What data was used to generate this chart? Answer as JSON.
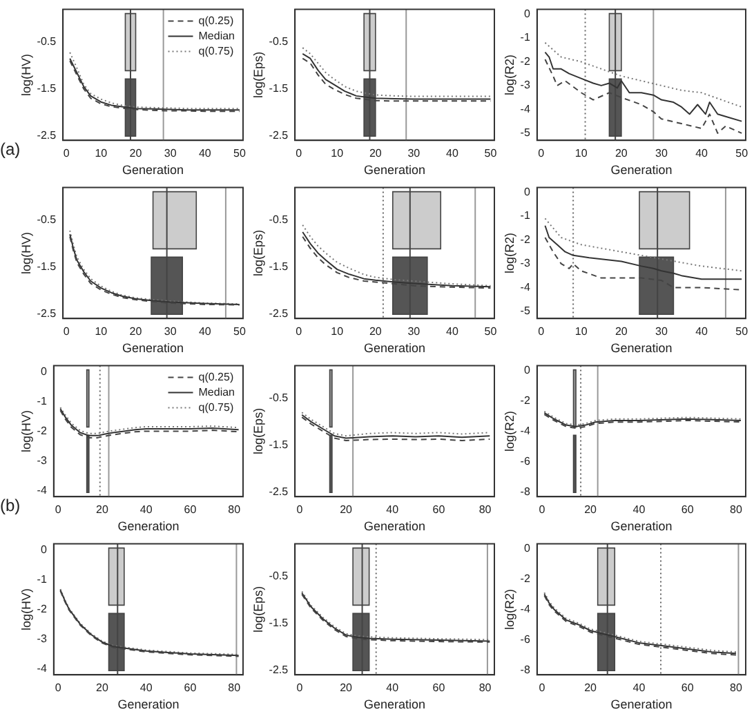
{
  "chart_data": [
    {
      "type": "line",
      "xlabel": "Generation",
      "ylabel": "log(HV)",
      "annotations": [
        "(a)"
      ],
      "legend": "top right",
      "xlim": [
        -1,
        51
      ],
      "xticks": [
        0,
        10,
        20,
        30,
        40,
        50
      ],
      "ylim": [
        -2.6,
        0.2
      ],
      "yticks": [
        -0.5,
        -1.5,
        -2.5
      ],
      "x": [
        1,
        3,
        5,
        7,
        10,
        13,
        16,
        20,
        25,
        30,
        35,
        40,
        45,
        50
      ],
      "bands": [
        {
          "axis": "x",
          "from": 17,
          "to": 20,
          "color": "#cccccc"
        },
        {
          "axis": "x",
          "from": 17,
          "to": 20,
          "color": "#555555"
        }
      ],
      "ref_lines": [
        {
          "axis": "x",
          "value": 18.5,
          "color": "#444444",
          "line_style": "solid"
        },
        {
          "axis": "x",
          "value": 28,
          "color": "#999999",
          "line_style": "solid"
        }
      ],
      "series": [
        {
          "name": "q(0.25)",
          "color": "#444444",
          "line_style": "dashed",
          "values": [
            -0.9,
            -1.2,
            -1.5,
            -1.7,
            -1.82,
            -1.88,
            -1.91,
            -1.94,
            -1.96,
            -1.97,
            -1.97,
            -1.98,
            -1.98,
            -1.98
          ]
        },
        {
          "name": "Median",
          "color": "#333333",
          "line_style": "solid",
          "values": [
            -0.85,
            -1.15,
            -1.45,
            -1.65,
            -1.78,
            -1.85,
            -1.88,
            -1.92,
            -1.93,
            -1.94,
            -1.95,
            -1.95,
            -1.95,
            -1.95
          ]
        },
        {
          "name": "q(0.75)",
          "color": "#777777",
          "line_style": "dotted",
          "values": [
            -0.72,
            -1.05,
            -1.4,
            -1.6,
            -1.72,
            -1.8,
            -1.85,
            -1.89,
            -1.9,
            -1.91,
            -1.92,
            -1.92,
            -1.92,
            -1.92
          ]
        }
      ]
    },
    {
      "type": "line",
      "xlabel": "Generation",
      "ylabel": "log(Eps)",
      "xlim": [
        -1,
        51
      ],
      "xticks": [
        0,
        10,
        20,
        30,
        40,
        50
      ],
      "ylim": [
        -2.6,
        0.2
      ],
      "yticks": [
        -0.5,
        -1.5,
        -2.5
      ],
      "x": [
        1,
        3,
        5,
        7,
        9,
        12,
        15,
        18,
        20,
        25,
        30,
        40,
        50
      ],
      "bands": [
        {
          "axis": "x",
          "from": 17,
          "to": 20,
          "color": "#cccccc"
        },
        {
          "axis": "x",
          "from": 17,
          "to": 20,
          "color": "#555555"
        }
      ],
      "ref_lines": [
        {
          "axis": "x",
          "value": 18.5,
          "color": "#444444",
          "line_style": "solid"
        },
        {
          "axis": "x",
          "value": 28,
          "color": "#999999",
          "line_style": "solid"
        }
      ],
      "series": [
        {
          "color": "#444444",
          "line_style": "dashed",
          "values": [
            -0.85,
            -0.95,
            -1.2,
            -1.4,
            -1.5,
            -1.62,
            -1.7,
            -1.73,
            -1.75,
            -1.76,
            -1.76,
            -1.76,
            -1.76
          ]
        },
        {
          "color": "#333333",
          "line_style": "solid",
          "values": [
            -0.75,
            -0.85,
            -1.1,
            -1.3,
            -1.4,
            -1.55,
            -1.65,
            -1.68,
            -1.7,
            -1.71,
            -1.72,
            -1.72,
            -1.72
          ]
        },
        {
          "color": "#777777",
          "line_style": "dotted",
          "values": [
            -0.62,
            -0.75,
            -0.95,
            -1.15,
            -1.28,
            -1.45,
            -1.55,
            -1.6,
            -1.63,
            -1.65,
            -1.66,
            -1.66,
            -1.66
          ]
        }
      ]
    },
    {
      "type": "line",
      "xlabel": "Generation",
      "ylabel": "log(R2)",
      "xlim": [
        -1,
        51
      ],
      "xticks": [
        0,
        10,
        20,
        30,
        40,
        50
      ],
      "ylim": [
        -5.3,
        0.2
      ],
      "yticks": [
        0,
        -1,
        -2,
        -3,
        -4,
        -5
      ],
      "bands": [
        {
          "axis": "x",
          "from": 17,
          "to": 20,
          "color": "#cccccc"
        },
        {
          "axis": "x",
          "from": 17,
          "to": 20,
          "color": "#555555"
        }
      ],
      "ref_lines": [
        {
          "axis": "x",
          "value": 11,
          "color": "#666666",
          "line_style": "dotted"
        },
        {
          "axis": "x",
          "value": 18.5,
          "color": "#444444",
          "line_style": "solid"
        },
        {
          "axis": "x",
          "value": 28,
          "color": "#999999",
          "line_style": "solid"
        }
      ],
      "series": [
        {
          "color": "#444444",
          "line_style": "dashed",
          "x": [
            1,
            3,
            4,
            6,
            10,
            13,
            17,
            20,
            25,
            28,
            30,
            35,
            40,
            42,
            44,
            46,
            50
          ],
          "values": [
            -1.9,
            -2.6,
            -3.0,
            -2.8,
            -3.3,
            -3.6,
            -3.3,
            -3.5,
            -3.8,
            -4.1,
            -4.4,
            -4.6,
            -4.8,
            -4.2,
            -5.0,
            -4.7,
            -5.0
          ]
        },
        {
          "color": "#333333",
          "line_style": "solid",
          "x": [
            1,
            2,
            3,
            5,
            7,
            10,
            13,
            15,
            17,
            19,
            20,
            22,
            25,
            28,
            30,
            33,
            35,
            37,
            39,
            41,
            42,
            44,
            46,
            50
          ],
          "values": [
            -1.6,
            -1.8,
            -2.3,
            -2.3,
            -2.5,
            -2.7,
            -2.9,
            -3.0,
            -2.9,
            -3.1,
            -2.8,
            -3.3,
            -3.3,
            -3.4,
            -3.6,
            -3.7,
            -3.9,
            -4.2,
            -3.8,
            -4.2,
            -3.7,
            -4.2,
            -4.3,
            -4.5
          ]
        },
        {
          "color": "#777777",
          "line_style": "dotted",
          "x": [
            1,
            5,
            10,
            15,
            20,
            25,
            30,
            35,
            40,
            45,
            50
          ],
          "values": [
            -1.2,
            -1.8,
            -2.0,
            -2.3,
            -2.6,
            -2.8,
            -3.0,
            -3.2,
            -3.3,
            -3.6,
            -3.9
          ]
        }
      ]
    },
    {
      "type": "line",
      "xlabel": "Generation",
      "ylabel": "log(HV)",
      "xlim": [
        -1,
        51
      ],
      "xticks": [
        0,
        10,
        20,
        30,
        40,
        50
      ],
      "ylim": [
        -2.6,
        0.2
      ],
      "yticks": [
        -0.5,
        -1.5,
        -2.5
      ],
      "x": [
        1,
        2,
        3,
        5,
        7,
        10,
        13,
        16,
        20,
        25,
        30,
        40,
        50
      ],
      "bands": [
        {
          "axis": "x",
          "from": 25,
          "to": 37.5,
          "color": "#cccccc"
        },
        {
          "axis": "x",
          "from": 24.5,
          "to": 33.5,
          "color": "#555555"
        }
      ],
      "ref_lines": [
        {
          "axis": "x",
          "value": 29,
          "color": "#444444",
          "line_style": "solid"
        },
        {
          "axis": "x",
          "value": 46,
          "color": "#999999",
          "line_style": "solid"
        }
      ],
      "series": [
        {
          "color": "#444444",
          "line_style": "dashed",
          "values": [
            -0.85,
            -1.15,
            -1.4,
            -1.65,
            -1.85,
            -1.99,
            -2.08,
            -2.15,
            -2.2,
            -2.24,
            -2.27,
            -2.3,
            -2.31
          ]
        },
        {
          "color": "#333333",
          "line_style": "solid",
          "values": [
            -0.8,
            -1.1,
            -1.35,
            -1.6,
            -1.8,
            -1.95,
            -2.05,
            -2.12,
            -2.18,
            -2.22,
            -2.25,
            -2.28,
            -2.3
          ]
        },
        {
          "color": "#777777",
          "line_style": "dotted",
          "values": [
            -0.72,
            -1.02,
            -1.28,
            -1.55,
            -1.75,
            -1.91,
            -2.02,
            -2.1,
            -2.16,
            -2.2,
            -2.23,
            -2.27,
            -2.29
          ]
        }
      ]
    },
    {
      "type": "line",
      "xlabel": "Generation",
      "ylabel": "log(Eps)",
      "xlim": [
        -1,
        51
      ],
      "xticks": [
        0,
        10,
        20,
        30,
        40,
        50
      ],
      "ylim": [
        -2.6,
        0.2
      ],
      "yticks": [
        -0.5,
        -1.5,
        -2.5
      ],
      "x": [
        1,
        3,
        5,
        7,
        10,
        13,
        17,
        20,
        25,
        30,
        40,
        50
      ],
      "bands": [
        {
          "axis": "x",
          "from": 24.5,
          "to": 37,
          "color": "#cccccc"
        },
        {
          "axis": "x",
          "from": 24.5,
          "to": 33.5,
          "color": "#555555"
        }
      ],
      "ref_lines": [
        {
          "axis": "x",
          "value": 22,
          "color": "#666666",
          "line_style": "dotted"
        },
        {
          "axis": "x",
          "value": 29,
          "color": "#444444",
          "line_style": "solid"
        },
        {
          "axis": "x",
          "value": 46,
          "color": "#999999",
          "line_style": "solid"
        }
      ],
      "series": [
        {
          "color": "#444444",
          "line_style": "dashed",
          "values": [
            -0.85,
            -1.1,
            -1.3,
            -1.45,
            -1.62,
            -1.72,
            -1.8,
            -1.82,
            -1.86,
            -1.9,
            -1.93,
            -1.95
          ]
        },
        {
          "color": "#333333",
          "line_style": "solid",
          "values": [
            -0.75,
            -1.0,
            -1.2,
            -1.35,
            -1.55,
            -1.65,
            -1.75,
            -1.78,
            -1.82,
            -1.85,
            -1.9,
            -1.92
          ]
        },
        {
          "color": "#777777",
          "line_style": "dotted",
          "values": [
            -0.6,
            -0.85,
            -1.05,
            -1.2,
            -1.4,
            -1.52,
            -1.66,
            -1.72,
            -1.77,
            -1.8,
            -1.86,
            -1.9
          ]
        }
      ]
    },
    {
      "type": "line",
      "xlabel": "Generation",
      "ylabel": "log(R2)",
      "xlim": [
        -1,
        51
      ],
      "xticks": [
        0,
        10,
        20,
        30,
        40,
        50
      ],
      "ylim": [
        -5.3,
        0.2
      ],
      "yticks": [
        0,
        -1,
        -2,
        -3,
        -4,
        -5
      ],
      "bands": [
        {
          "axis": "x",
          "from": 24.5,
          "to": 37,
          "color": "#cccccc"
        },
        {
          "axis": "x",
          "from": 24.5,
          "to": 33,
          "color": "#555555"
        }
      ],
      "ref_lines": [
        {
          "axis": "x",
          "value": 8,
          "color": "#666666",
          "line_style": "dotted"
        },
        {
          "axis": "x",
          "value": 29,
          "color": "#444444",
          "line_style": "solid"
        },
        {
          "axis": "x",
          "value": 46,
          "color": "#999999",
          "line_style": "solid"
        }
      ],
      "series": [
        {
          "color": "#444444",
          "line_style": "dashed",
          "x": [
            1,
            3,
            5,
            7,
            8,
            10,
            15,
            25,
            30,
            33,
            40,
            50
          ],
          "values": [
            -1.9,
            -2.5,
            -3.0,
            -3.2,
            -3.0,
            -3.3,
            -3.6,
            -3.6,
            -3.7,
            -4.0,
            -4.0,
            -4.1
          ]
        },
        {
          "color": "#333333",
          "line_style": "solid",
          "x": [
            1,
            2,
            4,
            6,
            8,
            12,
            20,
            25,
            28,
            30,
            33,
            35,
            40,
            50
          ],
          "values": [
            -1.4,
            -1.9,
            -2.2,
            -2.5,
            -2.65,
            -2.75,
            -2.9,
            -3.1,
            -3.2,
            -3.3,
            -3.4,
            -3.5,
            -3.65,
            -3.65
          ]
        },
        {
          "color": "#777777",
          "line_style": "dotted",
          "x": [
            1,
            5,
            10,
            20,
            30,
            40,
            50
          ],
          "values": [
            -1.1,
            -1.9,
            -2.2,
            -2.5,
            -2.8,
            -3.1,
            -3.3
          ]
        }
      ]
    },
    {
      "type": "line",
      "xlabel": "Generation",
      "ylabel": "log(HV)",
      "annotations": [
        "(b)"
      ],
      "legend": "top right",
      "xlim": [
        -2,
        84
      ],
      "xticks": [
        0,
        20,
        40,
        60,
        80
      ],
      "ylim": [
        -4.2,
        0.2
      ],
      "yticks": [
        0,
        -1,
        -2,
        -3,
        -4
      ],
      "x": [
        1,
        3,
        6,
        10,
        14,
        18,
        21,
        25,
        30,
        35,
        40,
        50,
        60,
        70,
        82
      ],
      "bands": [
        {
          "axis": "x",
          "from": 13,
          "to": 14,
          "color": "#999999"
        },
        {
          "axis": "x",
          "from": 13,
          "to": 14,
          "color": "#555555"
        }
      ],
      "ref_lines": [
        {
          "axis": "x",
          "value": 19,
          "color": "#666666",
          "line_style": "dotted"
        },
        {
          "axis": "x",
          "value": 23,
          "color": "#999999",
          "line_style": "solid"
        }
      ],
      "series": [
        {
          "name": "q(0.25)",
          "color": "#444444",
          "line_style": "dashed",
          "values": [
            -1.3,
            -1.57,
            -1.87,
            -2.12,
            -2.22,
            -2.22,
            -2.17,
            -2.12,
            -2.07,
            -2.02,
            -2.0,
            -2.0,
            -2.0,
            -1.97,
            -2.02
          ]
        },
        {
          "name": "Median",
          "color": "#333333",
          "line_style": "solid",
          "values": [
            -1.25,
            -1.5,
            -1.8,
            -2.05,
            -2.15,
            -2.15,
            -2.1,
            -2.05,
            -2.0,
            -1.95,
            -1.92,
            -1.92,
            -1.92,
            -1.9,
            -1.95
          ]
        },
        {
          "name": "q(0.75)",
          "color": "#777777",
          "line_style": "dotted",
          "values": [
            -1.2,
            -1.43,
            -1.73,
            -1.98,
            -2.08,
            -2.08,
            -2.03,
            -1.98,
            -1.93,
            -1.88,
            -1.85,
            -1.85,
            -1.85,
            -1.83,
            -1.88
          ]
        }
      ]
    },
    {
      "type": "line",
      "xlabel": "Generation",
      "ylabel": "log(Eps)",
      "xlim": [
        -2,
        84
      ],
      "xticks": [
        0,
        20,
        40,
        60,
        80
      ],
      "ylim": [
        -2.6,
        0.2
      ],
      "yticks": [
        -0.5,
        -1.5,
        -2.5
      ],
      "x": [
        1,
        5,
        10,
        15,
        20,
        30,
        40,
        50,
        60,
        70,
        82
      ],
      "bands": [
        {
          "axis": "x",
          "from": 13,
          "to": 14,
          "color": "#999999"
        },
        {
          "axis": "x",
          "from": 13,
          "to": 14,
          "color": "#555555"
        }
      ],
      "ref_lines": [
        {
          "axis": "x",
          "value": 23,
          "color": "#999999",
          "line_style": "solid"
        }
      ],
      "series": [
        {
          "color": "#444444",
          "line_style": "dashed",
          "values": [
            -0.9,
            -1.05,
            -1.2,
            -1.35,
            -1.4,
            -1.38,
            -1.37,
            -1.38,
            -1.37,
            -1.4,
            -1.37
          ]
        },
        {
          "color": "#333333",
          "line_style": "solid",
          "values": [
            -0.85,
            -1.0,
            -1.15,
            -1.3,
            -1.35,
            -1.32,
            -1.3,
            -1.32,
            -1.3,
            -1.33,
            -1.3
          ]
        },
        {
          "color": "#777777",
          "line_style": "dotted",
          "values": [
            -0.8,
            -0.95,
            -1.1,
            -1.25,
            -1.3,
            -1.25,
            -1.23,
            -1.25,
            -1.23,
            -1.26,
            -1.23
          ]
        }
      ]
    },
    {
      "type": "line",
      "xlabel": "Generation",
      "ylabel": "log(R2)",
      "xlim": [
        -2,
        84
      ],
      "xticks": [
        0,
        20,
        40,
        60,
        80
      ],
      "ylim": [
        -8.3,
        0.3
      ],
      "yticks": [
        0,
        -2,
        -4,
        -6,
        -8
      ],
      "x": [
        1,
        5,
        10,
        14,
        18,
        22,
        30,
        40,
        60,
        82
      ],
      "bands": [
        {
          "axis": "x",
          "from": 13,
          "to": 14,
          "color": "#999999"
        },
        {
          "axis": "x",
          "from": 13,
          "to": 14,
          "color": "#555555"
        }
      ],
      "ref_lines": [
        {
          "axis": "x",
          "value": 16,
          "color": "#666666",
          "line_style": "dotted"
        },
        {
          "axis": "x",
          "value": 23,
          "color": "#999999",
          "line_style": "solid"
        }
      ],
      "series": [
        {
          "color": "#444444",
          "line_style": "dashed",
          "values": [
            -2.9,
            -3.3,
            -3.7,
            -3.8,
            -3.7,
            -3.5,
            -3.4,
            -3.4,
            -3.3,
            -3.4
          ]
        },
        {
          "color": "#333333",
          "line_style": "solid",
          "values": [
            -2.8,
            -3.2,
            -3.6,
            -3.7,
            -3.6,
            -3.4,
            -3.3,
            -3.3,
            -3.2,
            -3.3
          ]
        },
        {
          "color": "#777777",
          "line_style": "dotted",
          "values": [
            -2.7,
            -3.1,
            -3.5,
            -3.6,
            -3.5,
            -3.3,
            -3.2,
            -3.2,
            -3.1,
            -3.2
          ]
        }
      ]
    },
    {
      "type": "line",
      "xlabel": "Generation",
      "ylabel": "log(HV)",
      "xlim": [
        -2,
        84
      ],
      "xticks": [
        0,
        20,
        40,
        60,
        80
      ],
      "ylim": [
        -4.2,
        0.2
      ],
      "yticks": [
        0,
        -1,
        -2,
        -3,
        -4
      ],
      "x": [
        1,
        3,
        5,
        10,
        15,
        20,
        25,
        30,
        40,
        50,
        60,
        70,
        82
      ],
      "bands": [
        {
          "axis": "x",
          "from": 23,
          "to": 30,
          "color": "#cccccc"
        },
        {
          "axis": "x",
          "from": 23,
          "to": 30,
          "color": "#555555"
        }
      ],
      "ref_lines": [
        {
          "axis": "x",
          "value": 27,
          "color": "#444444",
          "line_style": "solid"
        },
        {
          "axis": "x",
          "value": 81,
          "color": "#999999",
          "line_style": "solid"
        }
      ],
      "series": [
        {
          "color": "#444444",
          "line_style": "dashed",
          "values": [
            -1.38,
            -1.73,
            -2.03,
            -2.53,
            -2.88,
            -3.13,
            -3.28,
            -3.33,
            -3.43,
            -3.48,
            -3.53,
            -3.55,
            -3.58
          ]
        },
        {
          "color": "#333333",
          "line_style": "solid",
          "values": [
            -1.35,
            -1.7,
            -2.0,
            -2.5,
            -2.85,
            -3.1,
            -3.25,
            -3.3,
            -3.4,
            -3.45,
            -3.5,
            -3.52,
            -3.55
          ]
        },
        {
          "color": "#777777",
          "line_style": "dotted",
          "values": [
            -1.32,
            -1.67,
            -1.97,
            -2.47,
            -2.82,
            -3.07,
            -3.22,
            -3.27,
            -3.37,
            -3.42,
            -3.47,
            -3.49,
            -3.52
          ]
        }
      ]
    },
    {
      "type": "line",
      "xlabel": "Generation",
      "ylabel": "log(Eps)",
      "xlim": [
        -2,
        84
      ],
      "xticks": [
        0,
        20,
        40,
        60,
        80
      ],
      "ylim": [
        -2.6,
        0.2
      ],
      "yticks": [
        -0.5,
        -1.5,
        -2.5
      ],
      "x": [
        1,
        5,
        10,
        15,
        20,
        25,
        30,
        40,
        60,
        82
      ],
      "bands": [
        {
          "axis": "x",
          "from": 23,
          "to": 30,
          "color": "#cccccc"
        },
        {
          "axis": "x",
          "from": 23,
          "to": 30,
          "color": "#555555"
        }
      ],
      "ref_lines": [
        {
          "axis": "x",
          "value": 27,
          "color": "#444444",
          "line_style": "solid"
        },
        {
          "axis": "x",
          "value": 33,
          "color": "#666666",
          "line_style": "dotted"
        },
        {
          "axis": "x",
          "value": 81,
          "color": "#999999",
          "line_style": "solid"
        }
      ],
      "series": [
        {
          "color": "#444444",
          "line_style": "dashed",
          "values": [
            -0.88,
            -1.18,
            -1.43,
            -1.63,
            -1.78,
            -1.83,
            -1.85,
            -1.87,
            -1.89,
            -1.9
          ]
        },
        {
          "color": "#333333",
          "line_style": "solid",
          "values": [
            -0.85,
            -1.15,
            -1.4,
            -1.6,
            -1.75,
            -1.8,
            -1.82,
            -1.84,
            -1.86,
            -1.88
          ]
        },
        {
          "color": "#777777",
          "line_style": "dotted",
          "values": [
            -0.82,
            -1.12,
            -1.37,
            -1.57,
            -1.72,
            -1.77,
            -1.79,
            -1.81,
            -1.83,
            -1.85
          ]
        }
      ]
    },
    {
      "type": "line",
      "xlabel": "Generation",
      "ylabel": "log(R2)",
      "xlim": [
        -2,
        84
      ],
      "xticks": [
        0,
        20,
        40,
        60,
        80
      ],
      "ylim": [
        -8.3,
        0.3
      ],
      "yticks": [
        0,
        -2,
        -4,
        -6,
        -8
      ],
      "x": [
        1,
        3,
        5,
        10,
        15,
        20,
        25,
        30,
        40,
        50,
        60,
        70,
        80
      ],
      "bands": [
        {
          "axis": "x",
          "from": 23,
          "to": 30,
          "color": "#cccccc"
        },
        {
          "axis": "x",
          "from": 23,
          "to": 30,
          "color": "#555555"
        }
      ],
      "ref_lines": [
        {
          "axis": "x",
          "value": 27,
          "color": "#444444",
          "line_style": "solid"
        },
        {
          "axis": "x",
          "value": 49,
          "color": "#666666",
          "line_style": "dotted"
        },
        {
          "axis": "x",
          "value": 81,
          "color": "#999999",
          "line_style": "solid"
        }
      ],
      "series": [
        {
          "color": "#444444",
          "line_style": "dashed",
          "values": [
            -3.1,
            -3.7,
            -4.1,
            -4.8,
            -5.1,
            -5.5,
            -5.7,
            -5.9,
            -6.3,
            -6.5,
            -6.7,
            -6.9,
            -7.0
          ]
        },
        {
          "color": "#333333",
          "line_style": "solid",
          "values": [
            -3.0,
            -3.6,
            -4.0,
            -4.7,
            -5.0,
            -5.4,
            -5.6,
            -5.8,
            -6.2,
            -6.4,
            -6.6,
            -6.8,
            -6.9
          ]
        },
        {
          "color": "#777777",
          "line_style": "dotted",
          "values": [
            -2.9,
            -3.5,
            -3.9,
            -4.6,
            -4.9,
            -5.3,
            -5.5,
            -5.7,
            -6.1,
            -6.3,
            -6.5,
            -6.7,
            -6.8
          ]
        }
      ]
    }
  ]
}
